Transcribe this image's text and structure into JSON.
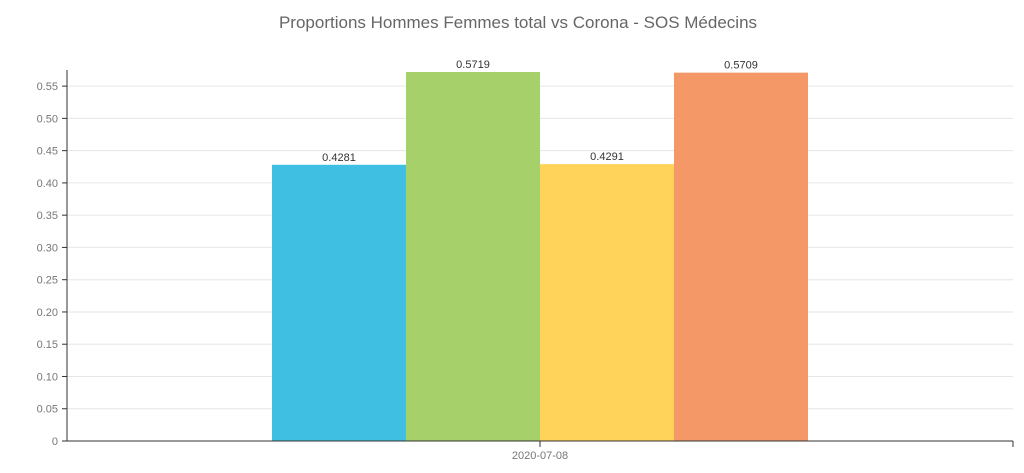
{
  "chart_data": {
    "type": "bar",
    "title": "Proportions Hommes Femmes total vs Corona - SOS Médecins",
    "categories": [
      "2020-07-08"
    ],
    "series": [
      {
        "values": [
          0.4281
        ],
        "color": "#3fbfe2"
      },
      {
        "values": [
          0.5719
        ],
        "color": "#a6d06a"
      },
      {
        "values": [
          0.4291
        ],
        "color": "#ffd35a"
      },
      {
        "values": [
          0.5709
        ],
        "color": "#f49868"
      }
    ],
    "data_labels": [
      "0.4281",
      "0.5719",
      "0.4291",
      "0.5709"
    ],
    "y_ticks": [
      "0",
      "0.05",
      "0.10",
      "0.15",
      "0.20",
      "0.25",
      "0.30",
      "0.35",
      "0.40",
      "0.45",
      "0.50",
      "0.55"
    ],
    "ylim": [
      0,
      0.575
    ],
    "grid": true,
    "xlabel": "",
    "ylabel": ""
  }
}
